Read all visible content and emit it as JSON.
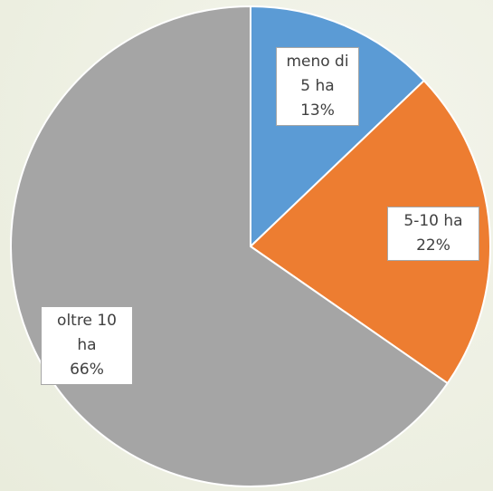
{
  "chart_data": {
    "type": "pie",
    "categories": [
      "meno di 5 ha",
      "5-10 ha",
      "oltre 10 ha"
    ],
    "values": [
      13,
      22,
      66
    ],
    "value_labels": [
      "13%",
      "22%",
      "66%"
    ],
    "colors": [
      "#5b9bd5",
      "#ed7d31",
      "#a5a5a5"
    ]
  }
}
